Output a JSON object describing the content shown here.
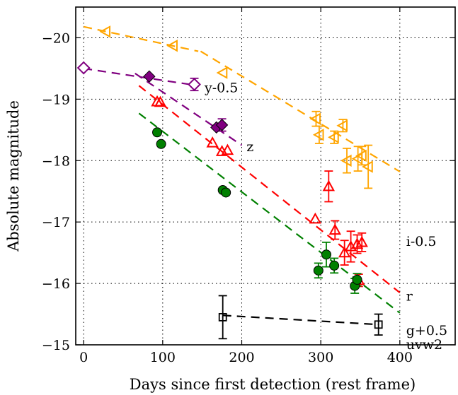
{
  "chart_data": {
    "type": "scatter",
    "xlabel": "Days since first detection (rest frame)",
    "ylabel": "Absolute magnitude",
    "xlim": [
      -10,
      470
    ],
    "ylim": [
      -15,
      -20.5
    ],
    "y_inverted": true,
    "grid": true,
    "x_ticks": [
      {
        "value": 0,
        "label": "0"
      },
      {
        "value": 100,
        "label": "100"
      },
      {
        "value": 200,
        "label": "200"
      },
      {
        "value": 300,
        "label": "300"
      },
      {
        "value": 400,
        "label": "400"
      }
    ],
    "y_ticks": [
      {
        "value": -15,
        "label": "−15"
      },
      {
        "value": -16,
        "label": "−16"
      },
      {
        "value": -17,
        "label": "−17"
      },
      {
        "value": -18,
        "label": "−18"
      },
      {
        "value": -19,
        "label": "−19"
      },
      {
        "value": -20,
        "label": "−20"
      }
    ],
    "series": [
      {
        "name": "i-0.5",
        "color": "#ffa500",
        "marker": "triangle-left",
        "filled": false,
        "label_at": {
          "x": 408,
          "y": -16.68
        },
        "points": [
          {
            "x": 28,
            "y": -20.1
          },
          {
            "x": 113,
            "y": -19.87
          },
          {
            "x": 176,
            "y": -19.43
          },
          {
            "x": 294,
            "y": -18.68,
            "err": 0.12
          },
          {
            "x": 298,
            "y": -18.42,
            "err": 0.14
          },
          {
            "x": 317,
            "y": -18.38,
            "err": 0.1
          },
          {
            "x": 328,
            "y": -18.57,
            "err": 0.1
          },
          {
            "x": 333,
            "y": -18.0,
            "err": 0.2
          },
          {
            "x": 347,
            "y": -18.03,
            "err": 0.2
          },
          {
            "x": 352,
            "y": -18.08,
            "err": 0.15
          },
          {
            "x": 360,
            "y": -17.9,
            "err": 0.35
          }
        ],
        "fit": [
          {
            "from": [
              0,
              -20.18
            ],
            "to": [
              145,
              -19.78
            ]
          },
          {
            "from": [
              148,
              -19.78
            ],
            "to": [
              400,
              -17.82
            ]
          }
        ]
      },
      {
        "name": "y-0.5",
        "color": "#800080",
        "marker": "diamond",
        "filled": false,
        "label_at": {
          "x": 153,
          "y": -19.18
        },
        "points": [
          {
            "x": 0,
            "y": -19.51
          },
          {
            "x": 140,
            "y": -19.24,
            "err": 0.1
          }
        ],
        "fit": [
          {
            "from": [
              0,
              -19.5
            ],
            "to": [
              145,
              -19.22
            ]
          }
        ]
      },
      {
        "name": "z",
        "color": "#800080",
        "marker": "diamond",
        "filled": true,
        "label_at": {
          "x": 206,
          "y": -18.22
        },
        "points": [
          {
            "x": 83,
            "y": -19.37
          },
          {
            "x": 168,
            "y": -18.54
          },
          {
            "x": 175,
            "y": -18.58,
            "err": 0.1
          }
        ],
        "fit": [
          {
            "from": [
              65,
              -19.42
            ],
            "to": [
              200,
              -18.25
            ]
          }
        ]
      },
      {
        "name": "r",
        "color": "#ff0000",
        "marker": "triangle-up",
        "filled": false,
        "label_at": {
          "x": 408,
          "y": -15.79
        },
        "points": [
          {
            "x": 93,
            "y": -18.96
          },
          {
            "x": 97,
            "y": -18.95
          },
          {
            "x": 163,
            "y": -18.29
          },
          {
            "x": 175,
            "y": -18.15
          },
          {
            "x": 182,
            "y": -18.17
          },
          {
            "x": 293,
            "y": -17.05
          },
          {
            "x": 310,
            "y": -17.58,
            "err": 0.25
          },
          {
            "x": 318,
            "y": -16.87,
            "err": 0.15
          },
          {
            "x": 330,
            "y": -16.5,
            "err": 0.2
          },
          {
            "x": 338,
            "y": -16.6,
            "err": 0.25
          },
          {
            "x": 346,
            "y": -16.64,
            "err": 0.15
          },
          {
            "x": 352,
            "y": -16.67,
            "err": 0.15
          },
          {
            "x": 348,
            "y": -16.05,
            "err": 0.1
          }
        ],
        "fit": [
          {
            "from": [
              70,
              -19.22
            ],
            "to": [
              400,
              -15.85
            ]
          }
        ]
      },
      {
        "name": "g+0.5",
        "color": "#008000",
        "marker": "circle",
        "filled": true,
        "label_at": {
          "x": 408,
          "y": -15.23
        },
        "points": [
          {
            "x": 93,
            "y": -18.46
          },
          {
            "x": 98,
            "y": -18.27
          },
          {
            "x": 176,
            "y": -17.52
          },
          {
            "x": 180,
            "y": -17.48
          },
          {
            "x": 297,
            "y": -16.21,
            "err": 0.12
          },
          {
            "x": 307,
            "y": -16.47,
            "err": 0.2
          },
          {
            "x": 317,
            "y": -16.29,
            "err": 0.12
          },
          {
            "x": 343,
            "y": -15.96,
            "err": 0.12
          },
          {
            "x": 346,
            "y": -16.06,
            "err": 0.1
          }
        ],
        "fit": [
          {
            "from": [
              70,
              -18.77
            ],
            "to": [
              400,
              -15.52
            ]
          }
        ]
      },
      {
        "name": "uvw2",
        "color": "#000000",
        "marker": "square",
        "filled": false,
        "label_at": {
          "x": 408,
          "y": -15.0
        },
        "points": [
          {
            "x": 176,
            "y": -15.45,
            "err": 0.35
          },
          {
            "x": 373,
            "y": -15.33,
            "err": 0.17
          }
        ],
        "fit": [
          {
            "from": [
              176,
              -15.48
            ],
            "to": [
              373,
              -15.33
            ]
          }
        ]
      }
    ]
  }
}
